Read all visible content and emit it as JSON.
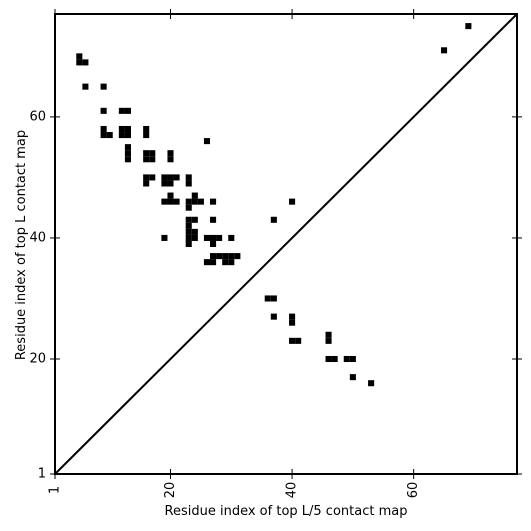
{
  "chart_data": {
    "type": "heatmap",
    "title": "",
    "xlabel": "Residue index of top L/5 contact map",
    "ylabel": "Residue index of top L contact map",
    "xlim": [
      1,
      77
    ],
    "ylim": [
      1,
      77
    ],
    "x_ticks": [
      1,
      20,
      40,
      60
    ],
    "y_ticks": [
      1,
      20,
      40,
      60
    ],
    "x_tick_labels": [
      "1",
      "20",
      "40",
      "60"
    ],
    "y_tick_labels": [
      "1",
      "20",
      "40",
      "60"
    ],
    "tick_label_rotation": {
      "x": -90,
      "y": 0
    },
    "diagonal": true,
    "cell_color": "#000000",
    "line_color": "#000000",
    "background": "#ffffff",
    "grid": false,
    "contacts_above_diagonal": [
      [
        5,
        70
      ],
      [
        5,
        69
      ],
      [
        6,
        69
      ],
      [
        6,
        65
      ],
      [
        9,
        65
      ],
      [
        9,
        61
      ],
      [
        9,
        58
      ],
      [
        9,
        57
      ],
      [
        10,
        57
      ],
      [
        12,
        61
      ],
      [
        13,
        61
      ],
      [
        12,
        58
      ],
      [
        13,
        58
      ],
      [
        12,
        57
      ],
      [
        13,
        57
      ],
      [
        13,
        55
      ],
      [
        13,
        54
      ],
      [
        13,
        53
      ],
      [
        16,
        58
      ],
      [
        16,
        57
      ],
      [
        16,
        54
      ],
      [
        17,
        54
      ],
      [
        16,
        53
      ],
      [
        17,
        53
      ],
      [
        16,
        50
      ],
      [
        17,
        50
      ],
      [
        16,
        49
      ],
      [
        19,
        50
      ],
      [
        20,
        50
      ],
      [
        21,
        50
      ],
      [
        19,
        49
      ],
      [
        20,
        49
      ],
      [
        20,
        54
      ],
      [
        20,
        53
      ],
      [
        20,
        47
      ],
      [
        19,
        46
      ],
      [
        20,
        46
      ],
      [
        21,
        46
      ],
      [
        19,
        40
      ],
      [
        23,
        50
      ],
      [
        23,
        49
      ],
      [
        24,
        47
      ],
      [
        23,
        46
      ],
      [
        24,
        46
      ],
      [
        25,
        46
      ],
      [
        23,
        45
      ],
      [
        23,
        43
      ],
      [
        24,
        43
      ],
      [
        23,
        42
      ],
      [
        23,
        41
      ],
      [
        24,
        41
      ],
      [
        23,
        40
      ],
      [
        24,
        40
      ],
      [
        23,
        39
      ],
      [
        26,
        56
      ],
      [
        27,
        46
      ],
      [
        27,
        43
      ],
      [
        26,
        40
      ],
      [
        27,
        40
      ],
      [
        28,
        40
      ],
      [
        27,
        39
      ],
      [
        27,
        37
      ],
      [
        28,
        37
      ],
      [
        29,
        37
      ],
      [
        30,
        37
      ],
      [
        31,
        37
      ],
      [
        26,
        36
      ],
      [
        27,
        36
      ],
      [
        29,
        36
      ],
      [
        30,
        36
      ],
      [
        30,
        40
      ],
      [
        36,
        30
      ],
      [
        37,
        30
      ],
      [
        37,
        43
      ],
      [
        37,
        27
      ],
      [
        40,
        46
      ],
      [
        40,
        27
      ],
      [
        40,
        26
      ],
      [
        40,
        23
      ],
      [
        41,
        23
      ],
      [
        46,
        24
      ],
      [
        46,
        23
      ],
      [
        46,
        20
      ],
      [
        47,
        20
      ],
      [
        49,
        20
      ],
      [
        50,
        20
      ],
      [
        50,
        17
      ],
      [
        53,
        16
      ],
      [
        65,
        71
      ],
      [
        69,
        75
      ]
    ]
  }
}
